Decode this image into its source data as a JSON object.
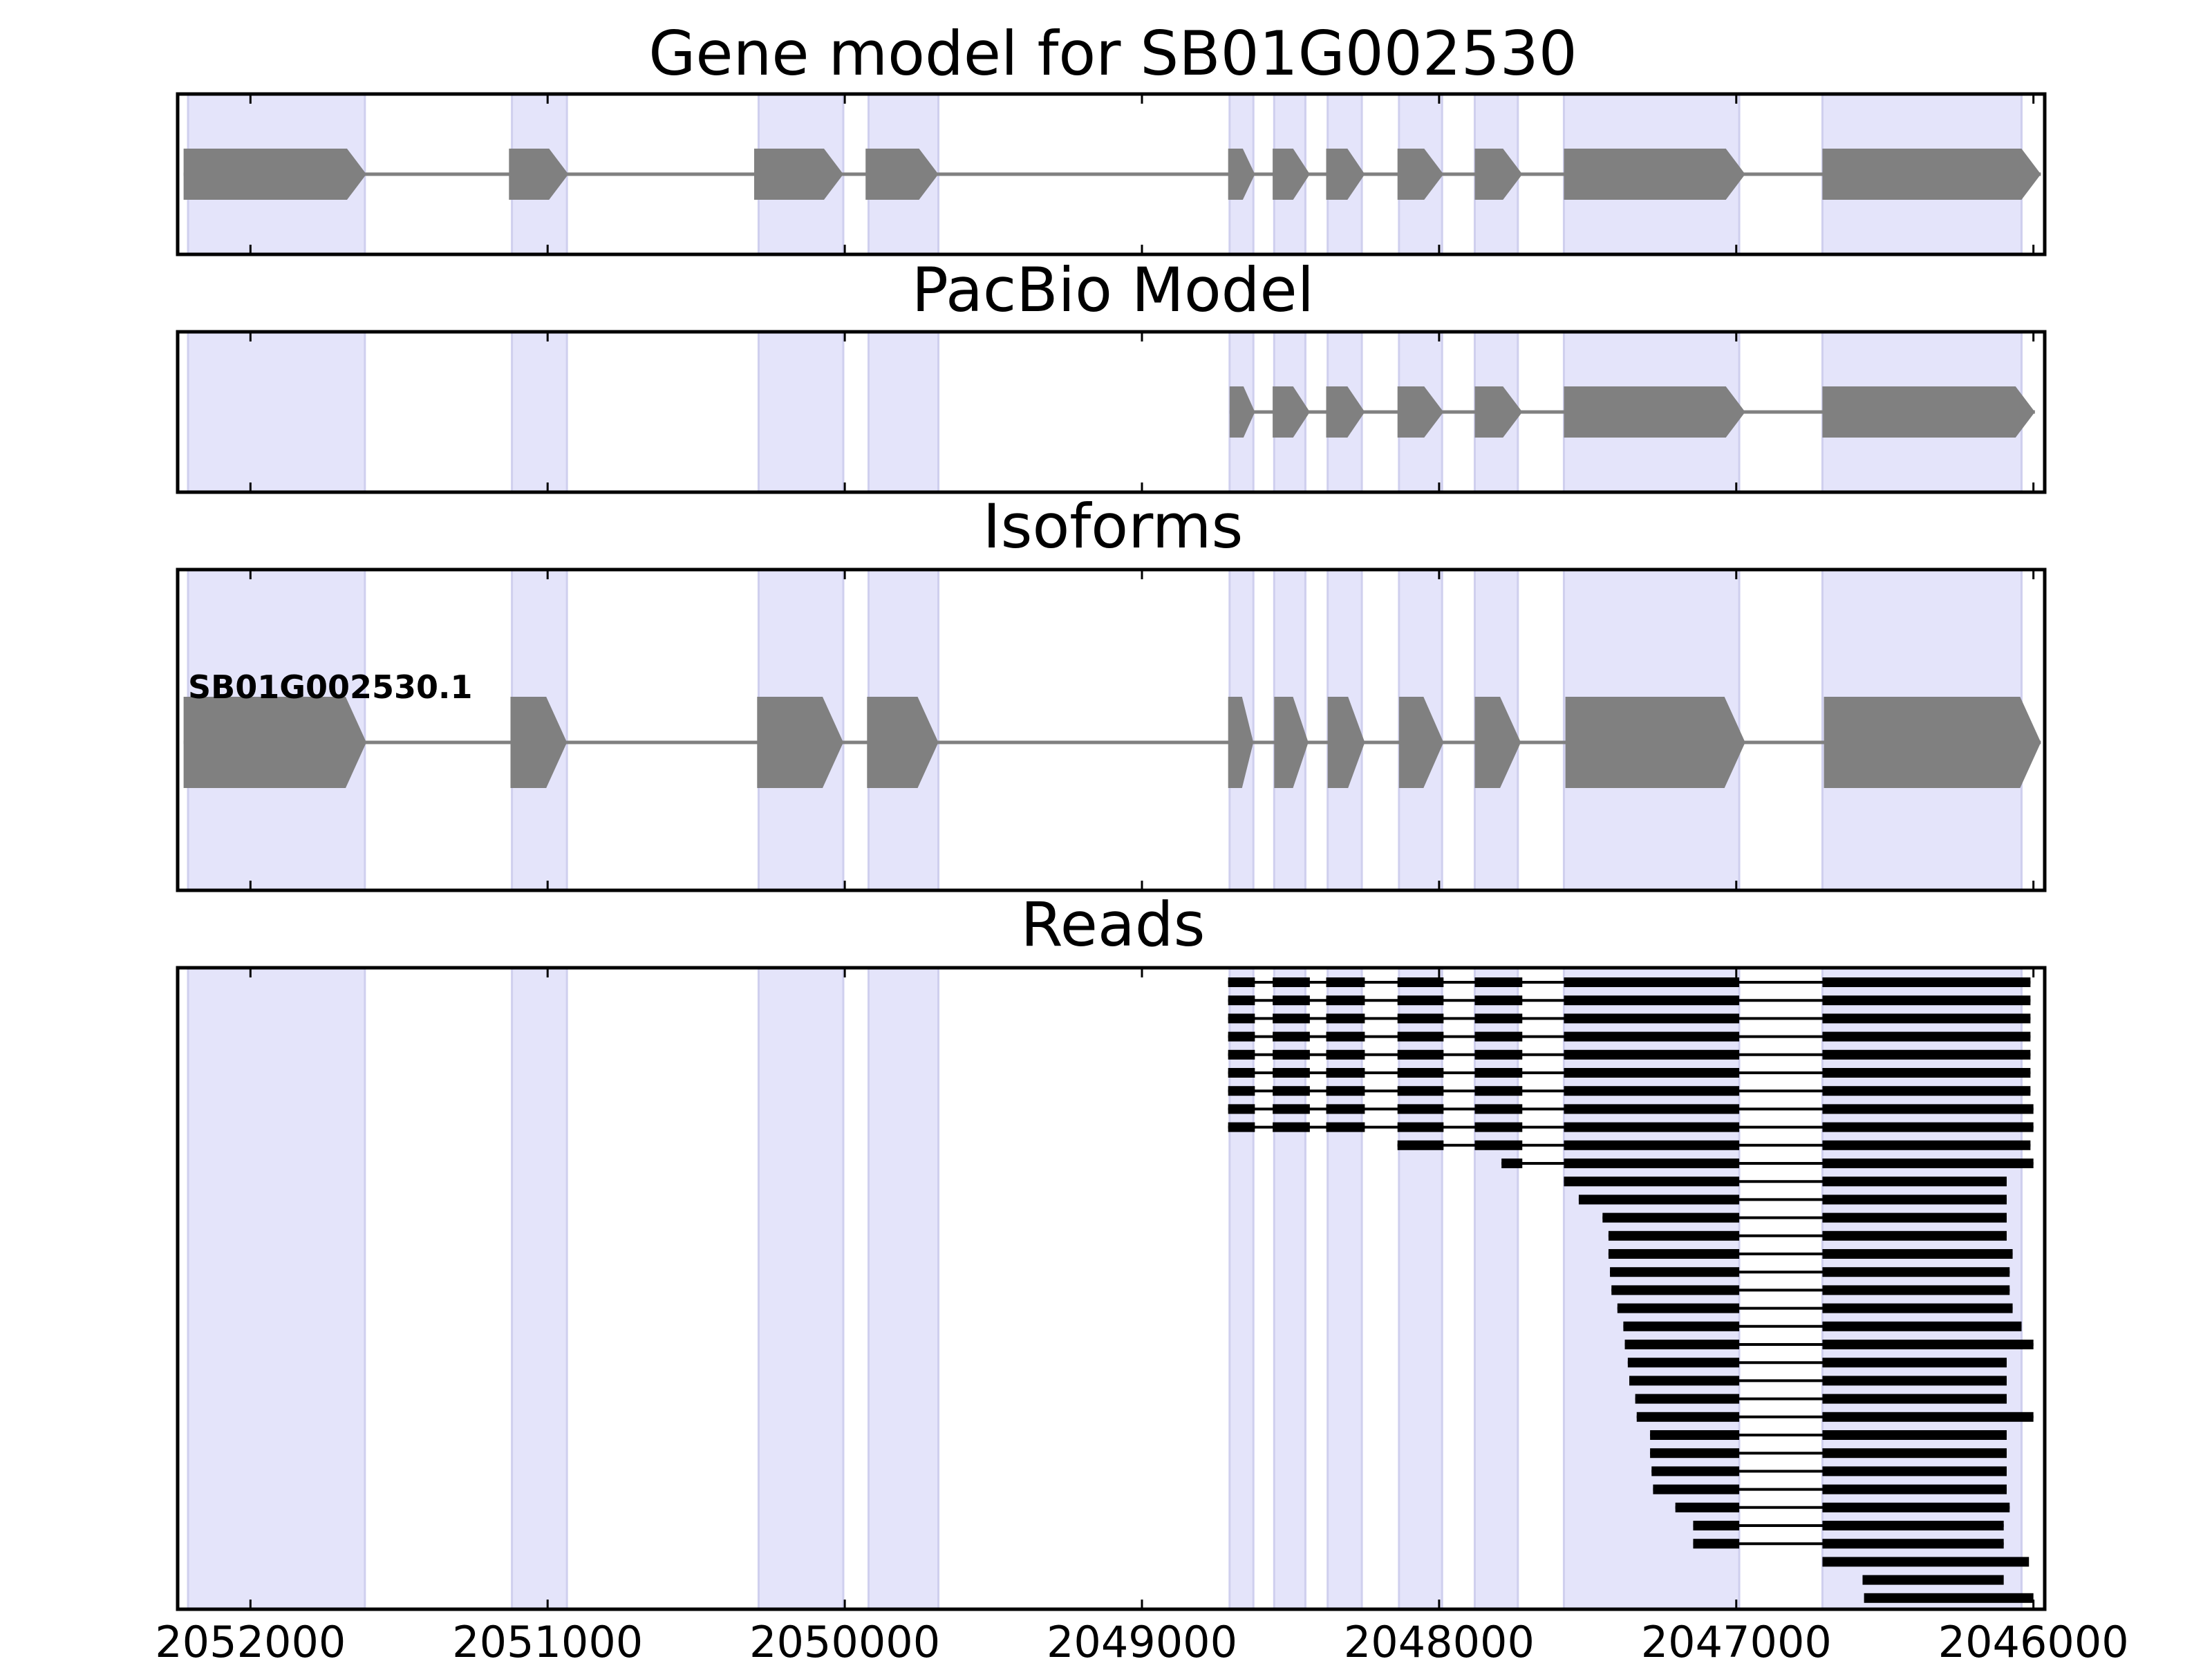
{
  "chart_data": {
    "type": "gene-structure",
    "title": "Gene model for SB01G002530",
    "xlim": [
      2052245,
      2045962
    ],
    "x_ticks": [
      2052000,
      2051000,
      2050000,
      2049000,
      2048000,
      2047000,
      2046000
    ],
    "x_tick_labels": [
      "2052000",
      "2051000",
      "2050000",
      "2049000",
      "2048000",
      "2047000",
      "2046000"
    ],
    "shade_color": "#e4e4fa",
    "feature_color": "#808080",
    "read_color": "#000000",
    "exon_regions": [
      [
        2052210,
        2051615
      ],
      [
        2051120,
        2050935
      ],
      [
        2050290,
        2050005
      ],
      [
        2049920,
        2049685
      ],
      [
        2048705,
        2048625
      ],
      [
        2048555,
        2048450
      ],
      [
        2048375,
        2048260
      ],
      [
        2048135,
        2047990
      ],
      [
        2047880,
        2047735
      ],
      [
        2047580,
        2046990
      ],
      [
        2046710,
        2046040
      ]
    ],
    "panels": [
      {
        "title": "Gene model for SB01G002530",
        "features": [
          {
            "strand": "-",
            "exons": [
              [
                2052225,
                2051610
              ],
              [
                2051130,
                2050930
              ],
              [
                2050305,
                2050005
              ],
              [
                2049930,
                2049685
              ],
              [
                2048710,
                2048620
              ],
              [
                2048560,
                2048435
              ],
              [
                2048380,
                2048250
              ],
              [
                2048140,
                2047985
              ],
              [
                2047880,
                2047720
              ],
              [
                2047580,
                2046970
              ],
              [
                2046710,
                2045975
              ]
            ]
          }
        ]
      },
      {
        "title": "PacBio Model",
        "features": [
          {
            "strand": "-",
            "exons": [
              [
                2048705,
                2048620
              ],
              [
                2048560,
                2048435
              ],
              [
                2048380,
                2048250
              ],
              [
                2048140,
                2047985
              ],
              [
                2047880,
                2047720
              ],
              [
                2047580,
                2046970
              ],
              [
                2046710,
                2045995
              ]
            ]
          }
        ]
      },
      {
        "title": "Isoforms",
        "features": [
          {
            "label": "SB01G002530.1",
            "strand": "-",
            "exons": [
              [
                2052225,
                2051610
              ],
              [
                2051125,
                2050935
              ],
              [
                2050295,
                2050005
              ],
              [
                2049925,
                2049685
              ],
              [
                2048710,
                2048625
              ],
              [
                2048555,
                2048440
              ],
              [
                2048375,
                2048250
              ],
              [
                2048135,
                2047985
              ],
              [
                2047880,
                2047725
              ],
              [
                2047575,
                2046970
              ],
              [
                2046705,
                2045975
              ]
            ]
          }
        ]
      }
    ],
    "reads_panel": {
      "title": "Reads",
      "reads": [
        {
          "exons": [
            [
              2048710,
              2048620
            ],
            [
              2048560,
              2048435
            ],
            [
              2048380,
              2048250
            ],
            [
              2048140,
              2047985
            ],
            [
              2047880,
              2047720
            ],
            [
              2047580,
              2046990
            ],
            [
              2046710,
              2046010
            ]
          ]
        },
        {
          "exons": [
            [
              2048710,
              2048620
            ],
            [
              2048560,
              2048435
            ],
            [
              2048380,
              2048250
            ],
            [
              2048140,
              2047985
            ],
            [
              2047880,
              2047720
            ],
            [
              2047580,
              2046990
            ],
            [
              2046710,
              2046010
            ]
          ]
        },
        {
          "exons": [
            [
              2048710,
              2048620
            ],
            [
              2048560,
              2048435
            ],
            [
              2048380,
              2048250
            ],
            [
              2048140,
              2047985
            ],
            [
              2047880,
              2047720
            ],
            [
              2047580,
              2046990
            ],
            [
              2046710,
              2046010
            ]
          ]
        },
        {
          "exons": [
            [
              2048710,
              2048620
            ],
            [
              2048560,
              2048435
            ],
            [
              2048380,
              2048250
            ],
            [
              2048140,
              2047985
            ],
            [
              2047880,
              2047720
            ],
            [
              2047580,
              2046990
            ],
            [
              2046710,
              2046010
            ]
          ]
        },
        {
          "exons": [
            [
              2048710,
              2048620
            ],
            [
              2048560,
              2048435
            ],
            [
              2048380,
              2048250
            ],
            [
              2048140,
              2047985
            ],
            [
              2047880,
              2047720
            ],
            [
              2047580,
              2046990
            ],
            [
              2046710,
              2046010
            ]
          ]
        },
        {
          "exons": [
            [
              2048710,
              2048620
            ],
            [
              2048560,
              2048435
            ],
            [
              2048380,
              2048250
            ],
            [
              2048140,
              2047985
            ],
            [
              2047880,
              2047720
            ],
            [
              2047580,
              2046990
            ],
            [
              2046710,
              2046010
            ]
          ]
        },
        {
          "exons": [
            [
              2048710,
              2048620
            ],
            [
              2048560,
              2048435
            ],
            [
              2048380,
              2048250
            ],
            [
              2048140,
              2047985
            ],
            [
              2047880,
              2047720
            ],
            [
              2047580,
              2046990
            ],
            [
              2046710,
              2046010
            ]
          ]
        },
        {
          "exons": [
            [
              2048710,
              2048620
            ],
            [
              2048560,
              2048435
            ],
            [
              2048380,
              2048250
            ],
            [
              2048140,
              2047985
            ],
            [
              2047880,
              2047720
            ],
            [
              2047580,
              2046990
            ],
            [
              2046710,
              2046000
            ]
          ]
        },
        {
          "exons": [
            [
              2048710,
              2048620
            ],
            [
              2048560,
              2048435
            ],
            [
              2048380,
              2048250
            ],
            [
              2048140,
              2047985
            ],
            [
              2047880,
              2047720
            ],
            [
              2047580,
              2046990
            ],
            [
              2046710,
              2046000
            ]
          ]
        },
        {
          "exons": [
            [
              2048140,
              2047985
            ],
            [
              2047880,
              2047720
            ],
            [
              2047580,
              2046990
            ],
            [
              2046710,
              2046010
            ]
          ]
        },
        {
          "exons": [
            [
              2047790,
              2047720
            ],
            [
              2047580,
              2046990
            ],
            [
              2046710,
              2046000
            ]
          ]
        },
        {
          "exons": [
            [
              2047580,
              2046990
            ],
            [
              2046710,
              2046090
            ]
          ]
        },
        {
          "exons": [
            [
              2047530,
              2046990
            ],
            [
              2046710,
              2046090
            ]
          ]
        },
        {
          "exons": [
            [
              2047450,
              2046990
            ],
            [
              2046710,
              2046090
            ]
          ]
        },
        {
          "exons": [
            [
              2047430,
              2046990
            ],
            [
              2046710,
              2046090
            ]
          ]
        },
        {
          "exons": [
            [
              2047430,
              2046990
            ],
            [
              2046710,
              2046070
            ]
          ]
        },
        {
          "exons": [
            [
              2047425,
              2046990
            ],
            [
              2046710,
              2046080
            ]
          ]
        },
        {
          "exons": [
            [
              2047420,
              2046990
            ],
            [
              2046710,
              2046080
            ]
          ]
        },
        {
          "exons": [
            [
              2047400,
              2046990
            ],
            [
              2046710,
              2046070
            ]
          ]
        },
        {
          "exons": [
            [
              2047380,
              2046990
            ],
            [
              2046710,
              2046040
            ]
          ]
        },
        {
          "exons": [
            [
              2047375,
              2046990
            ],
            [
              2046710,
              2046000
            ]
          ]
        },
        {
          "exons": [
            [
              2047365,
              2046990
            ],
            [
              2046710,
              2046090
            ]
          ]
        },
        {
          "exons": [
            [
              2047360,
              2046990
            ],
            [
              2046710,
              2046090
            ]
          ]
        },
        {
          "exons": [
            [
              2047340,
              2046990
            ],
            [
              2046710,
              2046090
            ]
          ]
        },
        {
          "exons": [
            [
              2047335,
              2046990
            ],
            [
              2046710,
              2046000
            ]
          ]
        },
        {
          "exons": [
            [
              2047290,
              2046990
            ],
            [
              2046710,
              2046090
            ]
          ]
        },
        {
          "exons": [
            [
              2047290,
              2046990
            ],
            [
              2046710,
              2046090
            ]
          ]
        },
        {
          "exons": [
            [
              2047285,
              2046990
            ],
            [
              2046710,
              2046090
            ]
          ]
        },
        {
          "exons": [
            [
              2047280,
              2046990
            ],
            [
              2046710,
              2046090
            ]
          ]
        },
        {
          "exons": [
            [
              2047205,
              2046990
            ],
            [
              2046710,
              2046080
            ]
          ]
        },
        {
          "exons": [
            [
              2047145,
              2046990
            ],
            [
              2046710,
              2046100
            ]
          ]
        },
        {
          "exons": [
            [
              2047145,
              2046990
            ],
            [
              2046710,
              2046100
            ]
          ]
        },
        {
          "exons": [
            [
              2046710,
              2046015
            ]
          ]
        },
        {
          "exons": [
            [
              2046575,
              2046100
            ]
          ]
        },
        {
          "exons": [
            [
              2046570,
              2046000
            ]
          ]
        }
      ]
    }
  }
}
